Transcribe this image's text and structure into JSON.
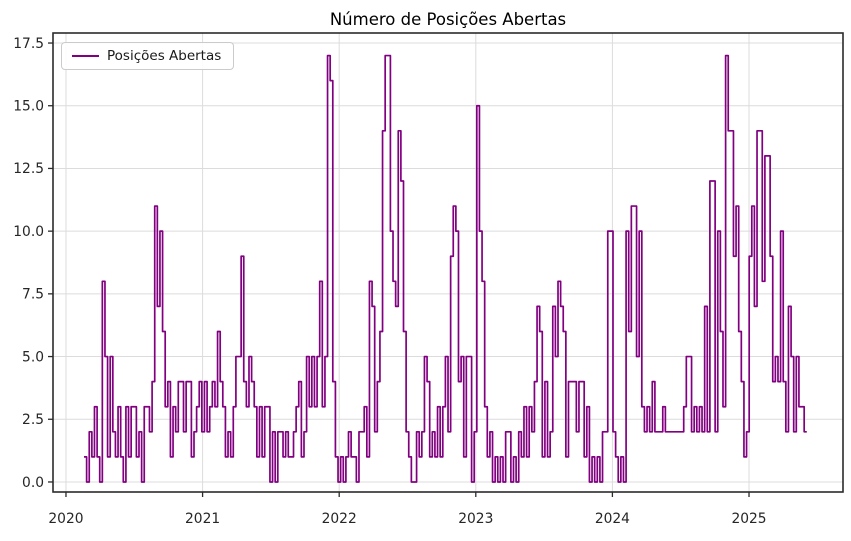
{
  "chart_data": {
    "type": "line",
    "title": "Número de Posições Abertas",
    "legend": [
      {
        "label": "Posições Abertas",
        "color": "#800080"
      }
    ],
    "line_color": "#800080",
    "line_width": 1.7,
    "draw_style": "steps-post",
    "grid": true,
    "grid_color": "#dcdcdc",
    "frame_color": "#2b2b2b",
    "x_tick_labels": [
      "2020",
      "2021",
      "2022",
      "2023",
      "2024",
      "2025"
    ],
    "x_ticks": [
      2020,
      2021,
      2022,
      2023,
      2024,
      2025
    ],
    "y_tick_labels": [
      "0.0",
      "2.5",
      "5.0",
      "7.5",
      "10.0",
      "12.5",
      "15.0",
      "17.5"
    ],
    "y_ticks": [
      0,
      2.5,
      5,
      7.5,
      10,
      12.5,
      15,
      17.5
    ],
    "xlim": [
      2019.905,
      2025.688
    ],
    "ylim": [
      -0.4,
      17.9
    ],
    "series": [
      {
        "name": "Posições Abertas",
        "x_start_year": 2020.132,
        "x_step_years": 0.01917,
        "values": [
          1,
          0,
          2,
          1,
          3,
          1,
          0,
          8,
          5,
          1,
          5,
          2,
          1,
          3,
          1,
          0,
          3,
          1,
          3,
          3,
          1,
          2,
          0,
          3,
          3,
          2,
          4,
          11,
          7,
          10,
          6,
          3,
          4,
          1,
          3,
          2,
          4,
          4,
          2,
          4,
          4,
          1,
          2,
          3,
          4,
          2,
          4,
          2,
          3,
          4,
          3,
          6,
          4,
          3,
          1,
          2,
          1,
          3,
          5,
          5,
          9,
          4,
          3,
          5,
          4,
          3,
          1,
          3,
          1,
          3,
          3,
          0,
          2,
          0,
          2,
          2,
          1,
          2,
          1,
          1,
          2,
          3,
          4,
          1,
          2,
          5,
          3,
          5,
          3,
          5,
          8,
          3,
          5,
          17,
          16,
          4,
          1,
          0,
          1,
          0,
          1,
          2,
          1,
          1,
          0,
          2,
          2,
          3,
          1,
          8,
          7,
          2,
          4,
          6,
          14,
          17,
          17,
          10,
          8,
          7,
          14,
          12,
          6,
          2,
          1,
          0,
          0,
          2,
          1,
          2,
          5,
          4,
          1,
          2,
          1,
          3,
          1,
          3,
          5,
          2,
          9,
          11,
          10,
          4,
          5,
          1,
          5,
          5,
          0,
          2,
          15,
          10,
          8,
          3,
          1,
          2,
          0,
          1,
          0,
          1,
          0,
          2,
          2,
          0,
          1,
          0,
          2,
          1,
          3,
          1,
          3,
          2,
          4,
          7,
          6,
          1,
          4,
          1,
          2,
          7,
          5,
          8,
          7,
          6,
          1,
          4,
          4,
          4,
          2,
          4,
          4,
          1,
          3,
          0,
          1,
          0,
          1,
          0,
          2,
          2,
          10,
          10,
          2,
          1,
          0,
          1,
          0,
          10,
          6,
          11,
          11,
          5,
          10,
          3,
          2,
          3,
          2,
          4,
          2,
          2,
          2,
          3,
          2,
          2,
          2,
          2,
          2,
          2,
          2,
          3,
          5,
          5,
          2,
          3,
          2,
          3,
          2,
          7,
          2,
          12,
          12,
          2,
          10,
          6,
          3,
          17,
          14,
          14,
          9,
          11,
          6,
          4,
          1,
          2,
          9,
          11,
          7,
          14,
          14,
          8,
          13,
          13,
          9,
          4,
          5,
          4,
          10,
          4,
          2,
          7,
          5,
          2,
          5,
          3,
          3,
          2
        ]
      }
    ]
  }
}
